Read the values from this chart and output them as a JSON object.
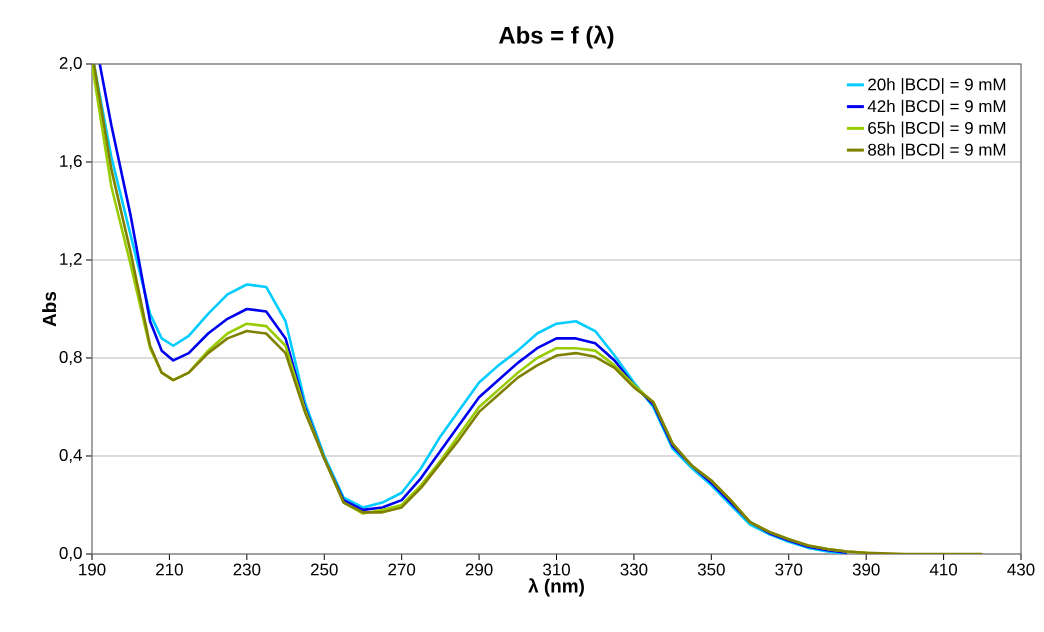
{
  "chart_data": {
    "type": "line",
    "title": "Abs = f (λ)",
    "xlabel": "λ (nm)",
    "ylabel": "Abs",
    "xlim": [
      190,
      430
    ],
    "xticks": [
      190,
      210,
      230,
      250,
      270,
      290,
      310,
      330,
      350,
      370,
      390,
      410,
      430
    ],
    "ylim": [
      0,
      2
    ],
    "yticks": [
      {
        "value": 0,
        "label": "0,0"
      },
      {
        "value": 0.4,
        "label": "0,4"
      },
      {
        "value": 0.8,
        "label": "0,8"
      },
      {
        "value": 1.2,
        "label": "1,2"
      },
      {
        "value": 1.6,
        "label": "1,6"
      },
      {
        "value": 2,
        "label": "2,0"
      }
    ],
    "grid": "y",
    "legend": "top right",
    "marker": "none",
    "line_style": "solid",
    "series": [
      {
        "name": "20h |BCD| = 9 mM",
        "color": "#00ccff",
        "x": [
          190.5,
          195,
          200,
          205,
          208,
          211,
          215,
          220,
          225,
          230,
          235,
          240,
          245,
          250,
          255,
          260,
          265,
          270,
          275,
          280,
          285,
          290,
          295,
          300,
          305,
          310,
          315,
          320,
          325,
          330,
          335,
          340,
          345,
          350,
          355,
          360,
          365,
          370,
          375,
          380,
          385
        ],
        "values": [
          2.0,
          1.62,
          1.3,
          0.98,
          0.88,
          0.85,
          0.89,
          0.98,
          1.06,
          1.1,
          1.09,
          0.95,
          0.62,
          0.4,
          0.23,
          0.19,
          0.21,
          0.25,
          0.35,
          0.48,
          0.59,
          0.7,
          0.77,
          0.83,
          0.9,
          0.94,
          0.95,
          0.91,
          0.81,
          0.7,
          0.6,
          0.43,
          0.35,
          0.28,
          0.2,
          0.12,
          0.08,
          0.05,
          0.025,
          0.01,
          0
        ]
      },
      {
        "name": "42h |BCD| = 9 mM",
        "color": "#0000ee",
        "x": [
          192,
          195,
          200,
          205,
          208,
          211,
          215,
          220,
          225,
          230,
          235,
          240,
          245,
          250,
          255,
          260,
          265,
          270,
          275,
          280,
          285,
          290,
          295,
          300,
          305,
          310,
          315,
          320,
          325,
          330,
          335,
          340,
          345,
          350,
          355,
          360,
          365,
          370,
          375,
          380,
          385
        ],
        "values": [
          2.0,
          1.75,
          1.38,
          0.95,
          0.83,
          0.79,
          0.82,
          0.9,
          0.96,
          1.0,
          0.99,
          0.88,
          0.6,
          0.39,
          0.22,
          0.18,
          0.19,
          0.22,
          0.31,
          0.42,
          0.53,
          0.64,
          0.71,
          0.78,
          0.84,
          0.88,
          0.88,
          0.86,
          0.79,
          0.69,
          0.61,
          0.44,
          0.36,
          0.29,
          0.21,
          0.13,
          0.085,
          0.055,
          0.03,
          0.015,
          0.005
        ]
      },
      {
        "name": "65h |BCD| = 9 mM",
        "color": "#99cc00",
        "x": [
          190,
          195,
          200,
          205,
          208,
          211,
          215,
          220,
          225,
          230,
          235,
          240,
          245,
          250,
          255,
          260,
          265,
          270,
          275,
          280,
          285,
          290,
          295,
          300,
          305,
          310,
          315,
          320,
          325,
          330,
          335,
          340,
          345,
          350,
          355,
          360,
          365,
          370,
          375,
          380,
          385,
          390,
          395
        ],
        "values": [
          2.0,
          1.5,
          1.18,
          0.84,
          0.74,
          0.71,
          0.74,
          0.83,
          0.9,
          0.94,
          0.93,
          0.85,
          0.59,
          0.39,
          0.21,
          0.165,
          0.18,
          0.2,
          0.28,
          0.38,
          0.49,
          0.6,
          0.67,
          0.74,
          0.8,
          0.84,
          0.84,
          0.83,
          0.77,
          0.69,
          0.62,
          0.45,
          0.36,
          0.3,
          0.22,
          0.13,
          0.09,
          0.06,
          0.035,
          0.02,
          0.01,
          0.005,
          0
        ]
      },
      {
        "name": "88h |BCD| = 9 mM",
        "color": "#808000",
        "x": [
          190.5,
          195,
          200,
          205,
          208,
          211,
          215,
          220,
          225,
          230,
          235,
          240,
          245,
          250,
          255,
          260,
          265,
          270,
          275,
          280,
          285,
          290,
          295,
          300,
          305,
          310,
          315,
          320,
          325,
          330,
          335,
          340,
          345,
          350,
          355,
          360,
          365,
          370,
          375,
          380,
          385,
          390,
          400,
          420
        ],
        "values": [
          2.0,
          1.57,
          1.23,
          0.85,
          0.74,
          0.71,
          0.74,
          0.82,
          0.88,
          0.91,
          0.9,
          0.82,
          0.58,
          0.39,
          0.21,
          0.17,
          0.17,
          0.19,
          0.27,
          0.37,
          0.47,
          0.58,
          0.65,
          0.72,
          0.77,
          0.81,
          0.82,
          0.805,
          0.76,
          0.68,
          0.62,
          0.45,
          0.36,
          0.3,
          0.22,
          0.13,
          0.09,
          0.06,
          0.035,
          0.02,
          0.01,
          0.005,
          0,
          0
        ]
      }
    ]
  }
}
